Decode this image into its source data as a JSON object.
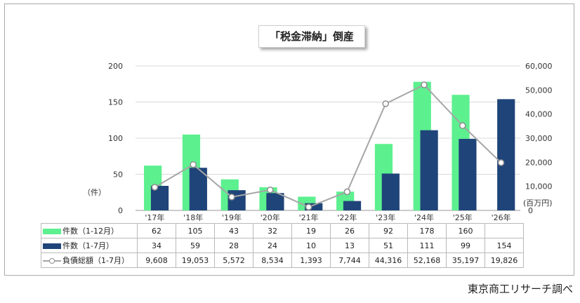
{
  "chart_data": {
    "type": "bar",
    "title": "「税金滞納」倒産",
    "categories": [
      "'17年",
      "'18年",
      "'19年",
      "'20年",
      "'21年",
      "'22年",
      "'23年",
      "'24年",
      "'25年",
      "'26年"
    ],
    "series": [
      {
        "name": "件数（1-12月）",
        "type": "bar",
        "axis": "left",
        "color": "#5cf08f",
        "values": [
          62,
          105,
          43,
          32,
          19,
          26,
          92,
          178,
          160,
          null
        ]
      },
      {
        "name": "件数（1-7月）",
        "type": "bar",
        "axis": "left",
        "color": "#1f4479",
        "values": [
          34,
          59,
          28,
          24,
          10,
          13,
          51,
          111,
          99,
          154
        ]
      },
      {
        "name": "負債総額（1-7月）",
        "type": "line",
        "axis": "right",
        "color": "#a6a6a6",
        "values": [
          9608,
          19053,
          5572,
          8534,
          1393,
          7744,
          44316,
          52168,
          35197,
          19826
        ]
      }
    ],
    "ylim_left": [
      0,
      200
    ],
    "yticks_left": [
      0,
      50,
      100,
      150,
      200
    ],
    "ylim_right": [
      0,
      60000
    ],
    "yticks_right": [
      "0",
      "10,000",
      "20,000",
      "30,000",
      "40,000",
      "50,000",
      "60,000"
    ],
    "ylabel_left": "（件）",
    "ylabel_right": "(百万円)",
    "table_rows": [
      {
        "label": "件数（1-12月）",
        "cells": [
          "62",
          "105",
          "43",
          "32",
          "19",
          "26",
          "92",
          "178",
          "160",
          ""
        ]
      },
      {
        "label": "件数（1-7月）",
        "cells": [
          "34",
          "59",
          "28",
          "24",
          "10",
          "13",
          "51",
          "111",
          "99",
          "154"
        ]
      },
      {
        "label": "負債総額（1-7月）",
        "cells": [
          "9,608",
          "19,053",
          "5,572",
          "8,534",
          "1,393",
          "7,744",
          "44,316",
          "52,168",
          "35,197",
          "19,826"
        ]
      }
    ],
    "grid": true,
    "legend": "data-table"
  },
  "source": "東京商工リサーチ調べ"
}
